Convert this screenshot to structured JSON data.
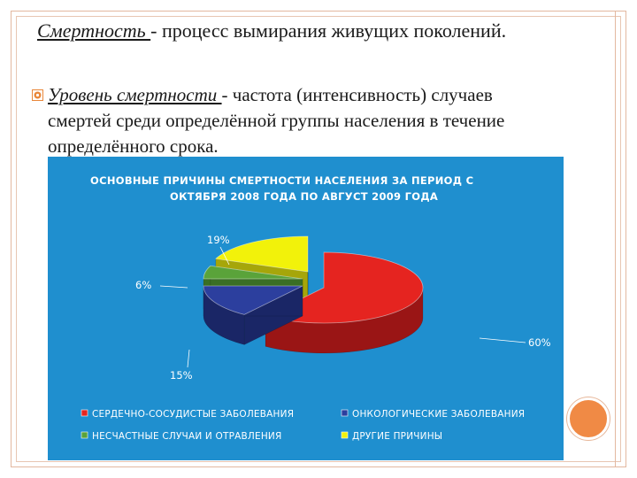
{
  "heading": {
    "term": "Смертность ",
    "rest": "- процесс вымирания живущих поколений."
  },
  "bullet": {
    "term": "Уровень смертности ",
    "line1_rest": "- частота (интенсивность) случаев",
    "line2": "смертей среди определённой группы населения в течение",
    "line3": "определённого срока."
  },
  "colors": {
    "bullet_accent": "#e9873a",
    "panel_bg": "#1f8fcf"
  },
  "chart_data": {
    "type": "pie",
    "title_lines": [
      "ОСНОВНЫЕ ПРИЧИНЫ СМЕРТНОСТИ НАСЕЛЕНИЯ ЗА ПЕРИОД С",
      "ОКТЯБРЯ 2008 ГОДА ПО АВГУСТ 2009 ГОДА"
    ],
    "categories": [
      "СЕРДЕЧНО-СОСУДИСТЫЕ ЗАБОЛЕВАНИЯ",
      "ОНКОЛОГИЧЕСКИЕ ЗАБОЛЕВАНИЯ",
      "НЕСЧАСТНЫЕ СЛУЧАИ И ОТРАВЛЕНИЯ",
      "ДРУГИЕ ПРИЧИНЫ"
    ],
    "values": [
      60,
      15,
      6,
      19
    ],
    "labels": [
      "60%",
      "15%",
      "6%",
      "19%"
    ],
    "colors": [
      "#e52420",
      "#2c3f9e",
      "#5aa33a",
      "#f2f20a"
    ],
    "legend_position": "bottom"
  }
}
